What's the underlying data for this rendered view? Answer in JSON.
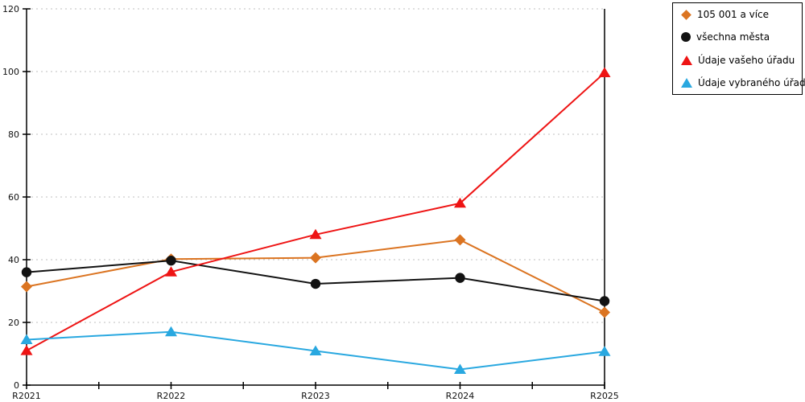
{
  "colors": {
    "background": "#ffffff",
    "axis": "#000000",
    "grid": "#bfbfbf",
    "legend_border": "#000000",
    "text": "#111111"
  },
  "chart_data": {
    "type": "line",
    "title": "",
    "xlabel": "",
    "ylabel": "",
    "categories": [
      "R2021",
      "R2022",
      "R2023",
      "R2024",
      "R2025"
    ],
    "series": [
      {
        "name": "105 001 a více",
        "marker": "diamond",
        "color": "#DB7421",
        "values": [
          31.4,
          40.2,
          40.6,
          46.3,
          23.2
        ]
      },
      {
        "name": "všechna města",
        "marker": "circle",
        "color": "#121212",
        "values": [
          36.0,
          39.7,
          32.3,
          34.2,
          26.8
        ]
      },
      {
        "name": "Údaje vašeho úřadu",
        "marker": "triangle",
        "color": "#EE1414",
        "values": [
          11.0,
          36.1,
          48.0,
          58.0,
          99.6
        ]
      },
      {
        "name": "Údaje vybraného úřadu",
        "marker": "triangle",
        "color": "#29A8E0",
        "values": [
          14.5,
          17.0,
          10.9,
          5.0,
          10.7
        ]
      }
    ],
    "ylim": [
      0,
      120
    ],
    "ytick_step": 20,
    "grid": "horizontal-dotted",
    "legend_position": "top-right",
    "minor_x_ticks_between_categories": true
  }
}
